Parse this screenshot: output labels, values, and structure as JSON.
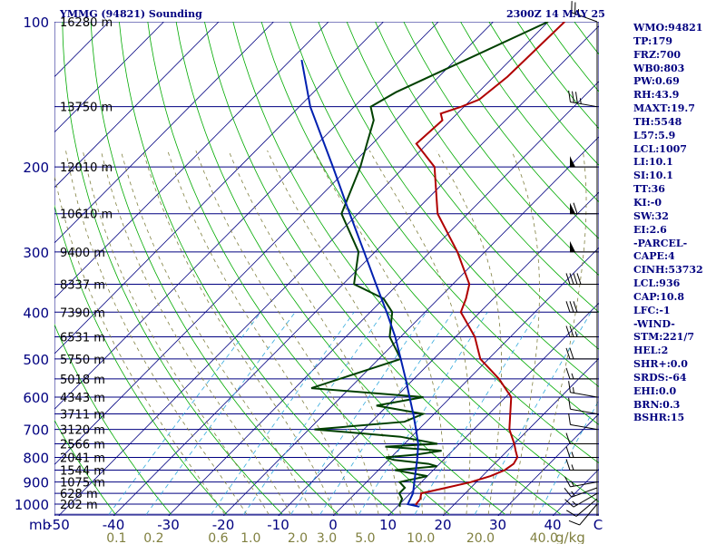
{
  "header": {
    "title": "YMMG (94821) Sounding",
    "time": "2300Z 14 MAY 25"
  },
  "stats": [
    "WMO:94821",
    "TP:179",
    "FRZ:700",
    "WB0:803",
    "PW:0.69",
    "RH:43.9",
    "MAXT:19.7",
    "TH:5548",
    "L57:5.9",
    "LCL:1007",
    "LI:10.1",
    "SI:10.1",
    "TT:36",
    "KI:-0",
    "SW:32",
    "EI:2.6",
    "-PARCEL-",
    "CAPE:4",
    "CINH:53732",
    "LCL:936",
    "CAP:10.8",
    "LFC:-1",
    "-WIND-",
    "STM:221/7",
    "HEL:2",
    "SHR+:0.0",
    "SRDS:-64",
    "EHI:0.0",
    "BRN:0.3",
    "BSHR:15"
  ],
  "chart_data": {
    "type": "line",
    "title": "YMMG (94821) Sounding",
    "xlabel": "",
    "ylabel": "mb",
    "mixing_ratio_unit": "g/kg",
    "pressure_ticks": [
      100,
      200,
      300,
      400,
      500,
      600,
      700,
      800,
      900,
      1000
    ],
    "temperature_ticks": [
      -50,
      -40,
      -30,
      -20,
      -10,
      0,
      10,
      20,
      30,
      40
    ],
    "temperature_tick_extra": "C",
    "mixing_ratio_labels": [
      "0.1",
      "0.2",
      "0.6",
      "1.0",
      "2.0",
      "3.0",
      "5.0",
      "10.0",
      "20.0",
      "40.0"
    ],
    "mixing_ratio_values": [
      0.1,
      0.2,
      0.6,
      1.0,
      2.0,
      3.0,
      5.0,
      10.0,
      20.0,
      40.0
    ],
    "height_labels": [
      {
        "p": 100,
        "h": "16280 m"
      },
      {
        "p": 150,
        "h": "13750 m"
      },
      {
        "p": 200,
        "h": "12010 m"
      },
      {
        "p": 250,
        "h": "10610 m"
      },
      {
        "p": 300,
        "h": "9400 m"
      },
      {
        "p": 350,
        "h": "8337 m"
      },
      {
        "p": 400,
        "h": "7390 m"
      },
      {
        "p": 450,
        "h": "6531 m"
      },
      {
        "p": 500,
        "h": "5750 m"
      },
      {
        "p": 550,
        "h": "5018 m"
      },
      {
        "p": 600,
        "h": "4343 m"
      },
      {
        "p": 650,
        "h": "3711 m"
      },
      {
        "p": 700,
        "h": "3120 m"
      },
      {
        "p": 750,
        "h": "2566 m"
      },
      {
        "p": 800,
        "h": "2041 m"
      },
      {
        "p": 850,
        "h": "1544 m"
      },
      {
        "p": 900,
        "h": "1075 m"
      },
      {
        "p": 950,
        "h": "628 m"
      },
      {
        "p": 1000,
        "h": "202 m"
      }
    ],
    "series": [
      {
        "color": "#b00000",
        "points": [
          [
            1012,
            13.5
          ],
          [
            1000,
            13
          ],
          [
            975,
            12.8
          ],
          [
            950,
            12.0
          ],
          [
            925,
            15.5
          ],
          [
            900,
            19.0
          ],
          [
            875,
            21.5
          ],
          [
            850,
            23.0
          ],
          [
            825,
            23.5
          ],
          [
            800,
            23.0
          ],
          [
            775,
            21.5
          ],
          [
            750,
            20.0
          ],
          [
            700,
            16.5
          ],
          [
            600,
            11.0
          ],
          [
            550,
            5.5
          ],
          [
            500,
            -1.5
          ],
          [
            450,
            -6.5
          ],
          [
            400,
            -13.5
          ],
          [
            375,
            -15.0
          ],
          [
            350,
            -17.0
          ],
          [
            300,
            -25.0
          ],
          [
            250,
            -35.5
          ],
          [
            200,
            -44.5
          ],
          [
            179,
            -52.0
          ],
          [
            160,
            -51.5
          ],
          [
            155,
            -53.0
          ],
          [
            150,
            -50.5
          ],
          [
            145,
            -48.5
          ],
          [
            130,
            -47.5
          ],
          [
            100,
            -47.0
          ]
        ]
      },
      {
        "color": "#004000",
        "points": [
          [
            1012,
            10.5
          ],
          [
            1000,
            10.0
          ],
          [
            975,
            9.5
          ],
          [
            950,
            8.0
          ],
          [
            925,
            8.0
          ],
          [
            900,
            6.0
          ],
          [
            875,
            10.0
          ],
          [
            850,
            3.0
          ],
          [
            835,
            10.0
          ],
          [
            825,
            8.0
          ],
          [
            810,
            1.0
          ],
          [
            800,
            -1.0
          ],
          [
            790,
            4.0
          ],
          [
            775,
            8.0
          ],
          [
            760,
            -3.0
          ],
          [
            750,
            6.0
          ],
          [
            725,
            -2.0
          ],
          [
            700,
            -19.0
          ],
          [
            675,
            -4.0
          ],
          [
            650,
            -2.0
          ],
          [
            625,
            -12.0
          ],
          [
            600,
            -5.0
          ],
          [
            575,
            -27.0
          ],
          [
            500,
            -16.0
          ],
          [
            450,
            -22.0
          ],
          [
            400,
            -26.0
          ],
          [
            375,
            -30.0
          ],
          [
            350,
            -38.0
          ],
          [
            300,
            -43.0
          ],
          [
            250,
            -53.0
          ],
          [
            200,
            -58.0
          ],
          [
            179,
            -61.0
          ],
          [
            160,
            -64.0
          ],
          [
            150,
            -67.0
          ],
          [
            140,
            -65.0
          ],
          [
            100,
            -50.0
          ]
        ]
      },
      {
        "color": "#0020b0",
        "points": [
          [
            1012,
            14.0
          ],
          [
            1000,
            11.5
          ],
          [
            950,
            10.5
          ],
          [
            900,
            8.7
          ],
          [
            850,
            6.8
          ],
          [
            800,
            4.8
          ],
          [
            750,
            2.5
          ],
          [
            700,
            -0.5
          ],
          [
            650,
            -3.8
          ],
          [
            600,
            -7.5
          ],
          [
            550,
            -11.5
          ],
          [
            500,
            -16.0
          ],
          [
            450,
            -21.0
          ],
          [
            400,
            -27.0
          ],
          [
            350,
            -34.0
          ],
          [
            300,
            -42.0
          ],
          [
            250,
            -51.5
          ],
          [
            200,
            -63.0
          ],
          [
            150,
            -78.0
          ],
          [
            120,
            -88.0
          ]
        ]
      }
    ],
    "wind_barbs": [
      {
        "p": 1000,
        "dir": 220,
        "spd": 10
      },
      {
        "p": 975,
        "dir": 230,
        "spd": 10
      },
      {
        "p": 950,
        "dir": 240,
        "spd": 15
      },
      {
        "p": 925,
        "dir": 250,
        "spd": 15
      },
      {
        "p": 900,
        "dir": 260,
        "spd": 15
      },
      {
        "p": 850,
        "dir": 270,
        "spd": 15
      },
      {
        "p": 800,
        "dir": 270,
        "spd": 15
      },
      {
        "p": 750,
        "dir": 270,
        "spd": 10
      },
      {
        "p": 700,
        "dir": 280,
        "spd": 10
      },
      {
        "p": 650,
        "dir": 280,
        "spd": 10
      },
      {
        "p": 600,
        "dir": 280,
        "spd": 15
      },
      {
        "p": 550,
        "dir": 270,
        "spd": 15
      },
      {
        "p": 500,
        "dir": 270,
        "spd": 20
      },
      {
        "p": 450,
        "dir": 270,
        "spd": 25
      },
      {
        "p": 400,
        "dir": 270,
        "spd": 30
      },
      {
        "p": 350,
        "dir": 270,
        "spd": 40
      },
      {
        "p": 300,
        "dir": 270,
        "spd": 50
      },
      {
        "p": 250,
        "dir": 270,
        "spd": 60
      },
      {
        "p": 200,
        "dir": 270,
        "spd": 50
      },
      {
        "p": 150,
        "dir": 280,
        "spd": 35
      },
      {
        "p": 100,
        "dir": 290,
        "spd": 25
      }
    ],
    "colors": {
      "isobars": "#000080",
      "isotherms": "#000080",
      "dry_adiabats": "#00aa00",
      "moist_adiabats": "#808040",
      "mixing_ratio": "#33aadd",
      "temperature": "#b00000",
      "dewpoint": "#004000",
      "parcel": "#0020b0"
    }
  }
}
